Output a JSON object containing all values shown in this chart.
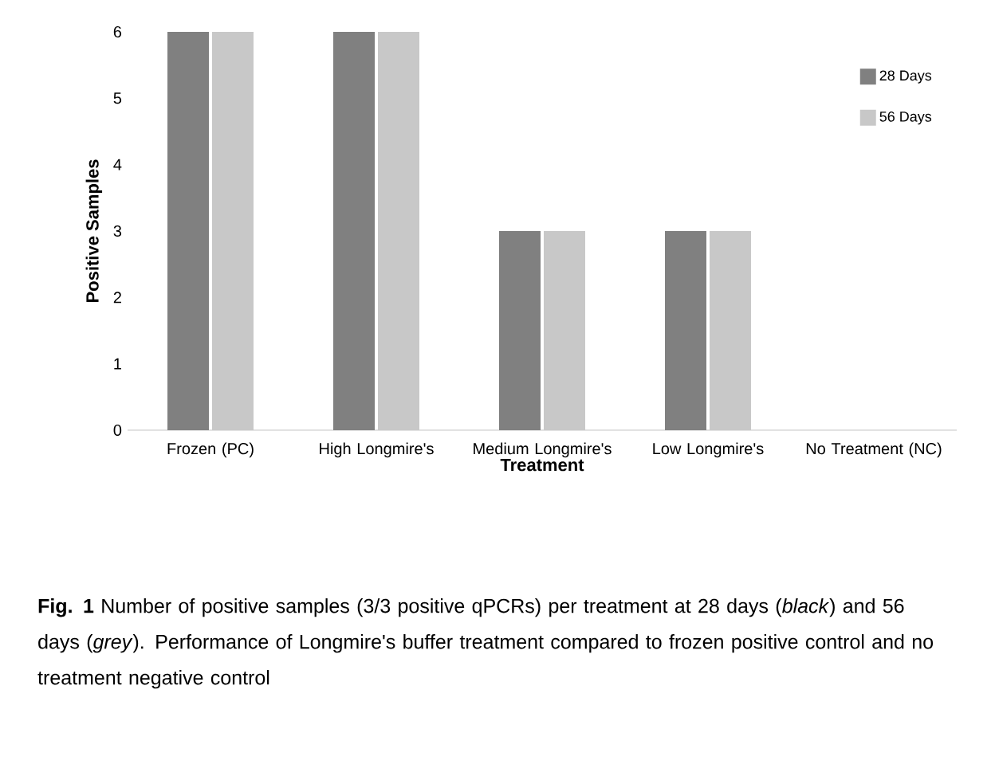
{
  "chart_data": {
    "type": "bar",
    "xlabel": "Treatment",
    "ylabel": "Positive Samples",
    "categories": [
      "Frozen (PC)",
      "High Longmire's",
      "Medium Longmire's",
      "Low Longmire's",
      "No Treatment (NC)"
    ],
    "series": [
      {
        "name": "28 Days",
        "color": "#808080",
        "values": [
          6,
          6,
          3,
          3,
          0
        ]
      },
      {
        "name": "56 Days",
        "color": "#c8c8c8",
        "values": [
          6,
          6,
          3,
          3,
          0
        ]
      }
    ],
    "ylim": [
      0,
      6
    ],
    "yticks": [
      0,
      1,
      2,
      3,
      4,
      5,
      6
    ],
    "legend": "top right",
    "annotations": [
      "**Fig. 1** Number of positive samples (3/3 positive qPCRs) per treatment at 28 days (*black*) and 56 days (*grey*). Performance of Longmire's buffer treatment compared to frozen positive control and no treatment negative control"
    ]
  }
}
